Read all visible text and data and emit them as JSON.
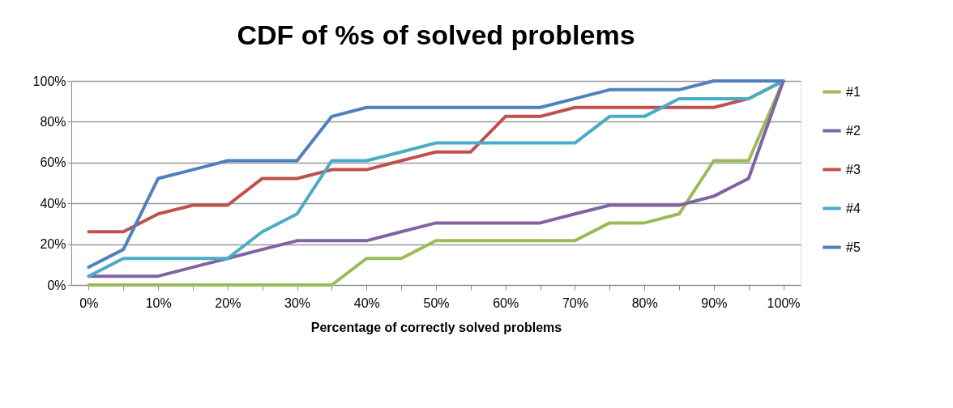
{
  "chart_data": {
    "type": "line",
    "title": "CDF of %s of solved problems",
    "xlabel": "Percentage of correctly solved problems",
    "categories": [
      "0%",
      null,
      "10%",
      null,
      "20%",
      null,
      "30%",
      null,
      "40%",
      null,
      "50%",
      null,
      "60%",
      null,
      "70%",
      null,
      "80%",
      null,
      "90%",
      null,
      "100%"
    ],
    "ylim": [
      0,
      100
    ],
    "yticks": [
      {
        "value": 0,
        "label": "0%"
      },
      {
        "value": 20,
        "label": "20%"
      },
      {
        "value": 40,
        "label": "40%"
      },
      {
        "value": 60,
        "label": "60%"
      },
      {
        "value": 80,
        "label": "80%"
      },
      {
        "value": 100,
        "label": "100%"
      }
    ],
    "grid": "y",
    "legend": "right",
    "marker": "none",
    "line_style": "solid",
    "series": [
      {
        "name": "#1",
        "color": "#9bbb59",
        "values": [
          0,
          0,
          0,
          0,
          0,
          0,
          0,
          0,
          13.0,
          13.0,
          21.7,
          21.7,
          21.7,
          21.7,
          21.7,
          30.4,
          30.4,
          34.8,
          60.9,
          60.9,
          100
        ]
      },
      {
        "name": "#2",
        "color": "#8064a2",
        "values": [
          4.3,
          4.3,
          4.3,
          8.7,
          13.0,
          17.4,
          21.7,
          21.7,
          21.7,
          26.1,
          30.4,
          30.4,
          30.4,
          30.4,
          34.8,
          39.1,
          39.1,
          39.1,
          43.5,
          52.2,
          100
        ]
      },
      {
        "name": "#3",
        "color": "#c0504d",
        "values": [
          26.1,
          26.1,
          34.8,
          39.1,
          39.1,
          52.2,
          52.2,
          56.5,
          56.5,
          60.9,
          65.2,
          65.2,
          82.6,
          82.6,
          87.0,
          87.0,
          87.0,
          87.0,
          87.0,
          91.3,
          100
        ]
      },
      {
        "name": "#4",
        "color": "#4bacc6",
        "values": [
          4.3,
          13.0,
          13.0,
          13.0,
          13.0,
          26.1,
          34.8,
          60.9,
          60.9,
          65.2,
          69.6,
          69.6,
          69.6,
          69.6,
          69.6,
          82.6,
          82.6,
          91.3,
          91.3,
          91.3,
          100
        ]
      },
      {
        "name": "#5",
        "color": "#4f81bd",
        "values": [
          8.7,
          17.4,
          52.2,
          56.5,
          60.9,
          60.9,
          60.9,
          82.6,
          87.0,
          87.0,
          87.0,
          87.0,
          87.0,
          87.0,
          91.3,
          95.7,
          95.7,
          95.7,
          100,
          100,
          100
        ]
      }
    ]
  }
}
